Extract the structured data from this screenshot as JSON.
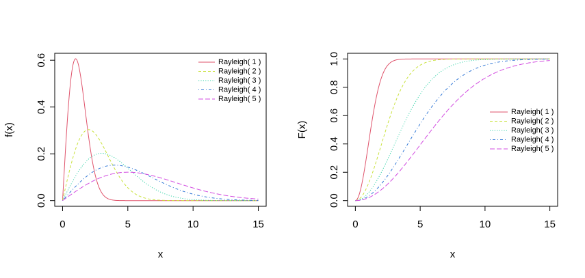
{
  "chart_data": [
    {
      "type": "line",
      "title": "",
      "xlabel": "x",
      "ylabel": "f(x)",
      "xlim": [
        0,
        15
      ],
      "ylim": [
        0,
        0.6
      ],
      "xticks": [
        0,
        5,
        10,
        15
      ],
      "yticks": [
        0.0,
        0.2,
        0.4,
        0.6
      ],
      "xtick_labels": [
        "0",
        "5",
        "10",
        "15"
      ],
      "ytick_labels": [
        "0.0",
        "0.2",
        "0.4",
        "0.6"
      ],
      "function": "pdf",
      "legend_position": "top-right",
      "series": [
        {
          "name": "Rayleigh( 1 )",
          "sigma": 1,
          "color": "#DF536B",
          "dash": "solid"
        },
        {
          "name": "Rayleigh( 2 )",
          "sigma": 2,
          "color": "#C9E23C",
          "dash": "dashed"
        },
        {
          "name": "Rayleigh( 3 )",
          "sigma": 3,
          "color": "#35D3A8",
          "dash": "dotted"
        },
        {
          "name": "Rayleigh( 4 )",
          "sigma": 4,
          "color": "#2F76D6",
          "dash": "dotdash"
        },
        {
          "name": "Rayleigh( 5 )",
          "sigma": 5,
          "color": "#D24BE0",
          "dash": "longdash"
        }
      ]
    },
    {
      "type": "line",
      "title": "",
      "xlabel": "x",
      "ylabel": "F(x)",
      "xlim": [
        0,
        15
      ],
      "ylim": [
        0,
        1
      ],
      "xticks": [
        0,
        5,
        10,
        15
      ],
      "yticks": [
        0.0,
        0.2,
        0.4,
        0.6,
        0.8,
        1.0
      ],
      "xtick_labels": [
        "0",
        "5",
        "10",
        "15"
      ],
      "ytick_labels": [
        "0.0",
        "0.2",
        "0.4",
        "0.6",
        "0.8",
        "1.0"
      ],
      "function": "cdf",
      "legend_position": "right",
      "series": [
        {
          "name": "Rayleigh( 1 )",
          "sigma": 1,
          "color": "#DF536B",
          "dash": "solid"
        },
        {
          "name": "Rayleigh( 2 )",
          "sigma": 2,
          "color": "#C9E23C",
          "dash": "dashed"
        },
        {
          "name": "Rayleigh( 3 )",
          "sigma": 3,
          "color": "#35D3A8",
          "dash": "dotted"
        },
        {
          "name": "Rayleigh( 4 )",
          "sigma": 4,
          "color": "#2F76D6",
          "dash": "dotdash"
        },
        {
          "name": "Rayleigh( 5 )",
          "sigma": 5,
          "color": "#D24BE0",
          "dash": "longdash"
        }
      ]
    }
  ]
}
